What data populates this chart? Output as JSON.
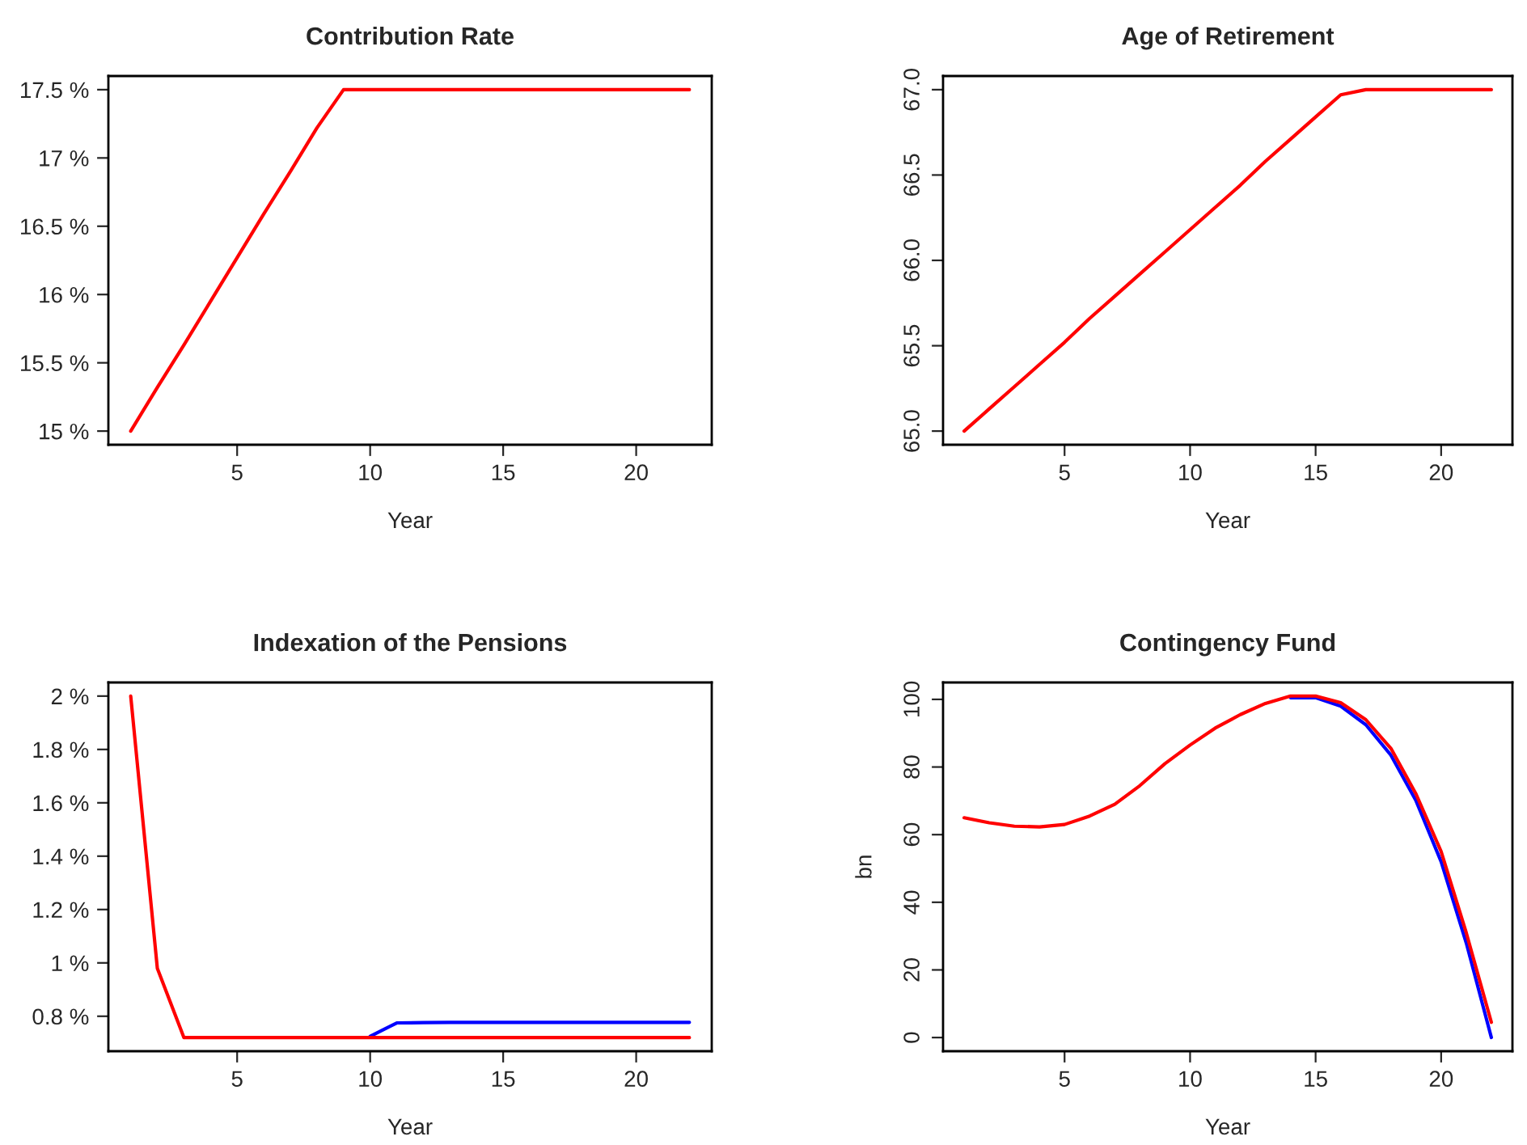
{
  "chart_data": [
    {
      "type": "line",
      "title": "Contribution Rate",
      "xlabel": "Year",
      "x": [
        1,
        2,
        3,
        4,
        5,
        6,
        7,
        8,
        9,
        10,
        11,
        12,
        13,
        14,
        15,
        16,
        17,
        18,
        19,
        20,
        21,
        22
      ],
      "xlim": [
        0.16,
        22.84
      ],
      "xticks": [
        5,
        10,
        15,
        20
      ],
      "ylim": [
        14.9,
        17.6
      ],
      "yticks": [
        {
          "value": 15,
          "label": "15 %"
        },
        {
          "value": 15.5,
          "label": "15.5 %"
        },
        {
          "value": 16,
          "label": "16 %"
        },
        {
          "value": 16.5,
          "label": "16.5 %"
        },
        {
          "value": 17,
          "label": "17 %"
        },
        {
          "value": 17.5,
          "label": "17.5 %"
        }
      ],
      "series": [
        {
          "color": "#ff0000",
          "values": [
            15,
            15.32,
            15.63,
            15.95,
            16.27,
            16.59,
            16.9,
            17.22,
            17.5,
            17.5,
            17.5,
            17.5,
            17.5,
            17.5,
            17.5,
            17.5,
            17.5,
            17.5,
            17.5,
            17.5,
            17.5,
            17.5
          ]
        }
      ]
    },
    {
      "type": "line",
      "title": "Age of Retirement",
      "xlabel": "Year",
      "x": [
        1,
        2,
        3,
        4,
        5,
        6,
        7,
        8,
        9,
        10,
        11,
        12,
        13,
        14,
        15,
        16,
        17,
        18,
        19,
        20,
        21,
        22
      ],
      "xlim": [
        0.16,
        22.84
      ],
      "xticks": [
        5,
        10,
        15,
        20
      ],
      "ylim": [
        64.92,
        67.08
      ],
      "yticks": [
        {
          "value": 65,
          "label": "65.0"
        },
        {
          "value": 65.5,
          "label": "65.5"
        },
        {
          "value": 66,
          "label": "66.0"
        },
        {
          "value": 66.5,
          "label": "66.5"
        },
        {
          "value": 67,
          "label": "67.0"
        }
      ],
      "series": [
        {
          "color": "#ff0000",
          "values": [
            65,
            65.13,
            65.26,
            65.39,
            65.52,
            65.66,
            65.79,
            65.92,
            66.05,
            66.18,
            66.31,
            66.44,
            66.58,
            66.71,
            66.84,
            66.97,
            67,
            67,
            67,
            67,
            67,
            67
          ]
        }
      ]
    },
    {
      "type": "line",
      "title": "Indexation of the Pensions",
      "xlabel": "Year",
      "x": [
        1,
        2,
        3,
        4,
        5,
        6,
        7,
        8,
        9,
        10,
        11,
        12,
        13,
        14,
        15,
        16,
        17,
        18,
        19,
        20,
        21,
        22
      ],
      "xlim": [
        0.16,
        22.84
      ],
      "xticks": [
        5,
        10,
        15,
        20
      ],
      "ylim": [
        0.669,
        2.051
      ],
      "yticks": [
        {
          "value": 0.8,
          "label": "0.8 %"
        },
        {
          "value": 1,
          "label": "1 %"
        },
        {
          "value": 1.2,
          "label": "1.2 %"
        },
        {
          "value": 1.4,
          "label": "1.4 %"
        },
        {
          "value": 1.6,
          "label": "1.6 %"
        },
        {
          "value": 1.8,
          "label": "1.8 %"
        },
        {
          "value": 2,
          "label": "2 %"
        }
      ],
      "series": [
        {
          "color": "#0000ff",
          "values": [
            null,
            null,
            null,
            null,
            null,
            null,
            null,
            null,
            null,
            0.725,
            0.775,
            0.776,
            0.777,
            0.777,
            0.777,
            0.777,
            0.777,
            0.777,
            0.777,
            0.777,
            0.777,
            0.777
          ]
        },
        {
          "color": "#ff0000",
          "values": [
            2,
            0.98,
            0.72,
            0.72,
            0.72,
            0.72,
            0.72,
            0.72,
            0.72,
            0.72,
            0.72,
            0.72,
            0.72,
            0.72,
            0.72,
            0.72,
            0.72,
            0.72,
            0.72,
            0.72,
            0.72,
            0.72
          ]
        }
      ]
    },
    {
      "type": "line",
      "title": "Contingency Fund",
      "xlabel": "Year",
      "ylabel": "bn",
      "x": [
        1,
        2,
        3,
        4,
        5,
        6,
        7,
        8,
        9,
        10,
        11,
        12,
        13,
        14,
        15,
        16,
        17,
        18,
        19,
        20,
        21,
        22
      ],
      "xlim": [
        0.16,
        22.84
      ],
      "xticks": [
        5,
        10,
        15,
        20
      ],
      "ylim": [
        -4.04,
        105
      ],
      "yticks": [
        0,
        20,
        40,
        60,
        80,
        100
      ],
      "series": [
        {
          "color": "#0000ff",
          "values": [
            null,
            null,
            null,
            null,
            null,
            null,
            null,
            null,
            null,
            null,
            null,
            null,
            null,
            100.5,
            100.5,
            98,
            92.5,
            83.5,
            70,
            52,
            28,
            0
          ]
        },
        {
          "color": "#ff0000",
          "values": [
            65,
            63.5,
            62.5,
            62.3,
            63,
            65.5,
            69,
            74.5,
            81,
            86.5,
            91.5,
            95.5,
            98.8,
            101,
            101,
            99,
            94,
            85.5,
            72,
            55,
            31,
            4.5
          ]
        }
      ]
    }
  ]
}
